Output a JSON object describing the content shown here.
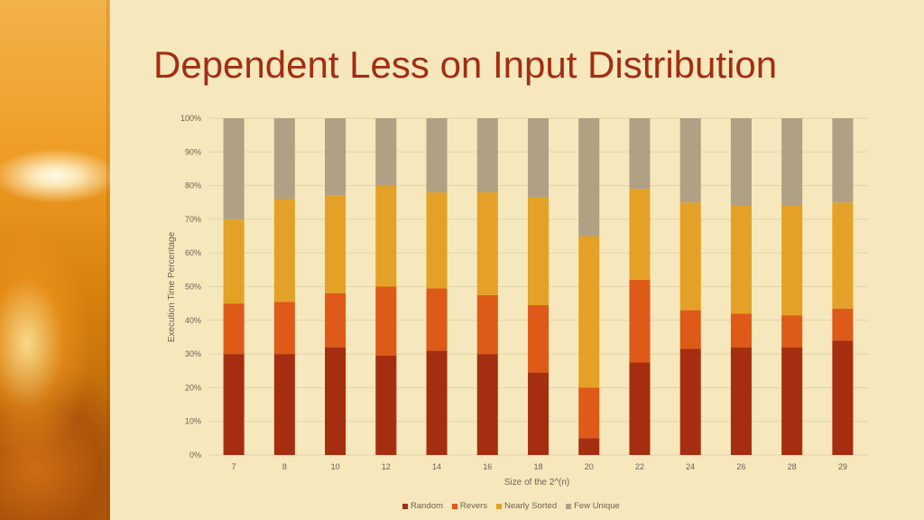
{
  "slide": {
    "title": "Dependent Less on Input Distribution"
  },
  "chart_data": {
    "type": "bar",
    "stacked": "percent",
    "categories": [
      "7",
      "8",
      "10",
      "12",
      "14",
      "16",
      "18",
      "20",
      "22",
      "24",
      "26",
      "28",
      "29"
    ],
    "xlabel": "Size of the 2^(n)",
    "ylabel": "Execution Time Percentage",
    "ylim": [
      0,
      100
    ],
    "yticks": [
      "0%",
      "10%",
      "20%",
      "30%",
      "40%",
      "50%",
      "60%",
      "70%",
      "80%",
      "90%",
      "100%"
    ],
    "grid": true,
    "legend_position": "bottom",
    "series": [
      {
        "name": "Random",
        "color": "#a62e10",
        "values": [
          30,
          30,
          32,
          29.5,
          31,
          30,
          24.5,
          5,
          27.5,
          31.5,
          32,
          32,
          34
        ]
      },
      {
        "name": "Revers",
        "color": "#dd5a19",
        "values": [
          15,
          15.5,
          16,
          20.5,
          18.5,
          17.5,
          20,
          15,
          24.5,
          11.5,
          10,
          9.5,
          9.5
        ]
      },
      {
        "name": "Nearly Sorted",
        "color": "#e4a127",
        "values": [
          25,
          30.5,
          29,
          30,
          28.5,
          30.5,
          32,
          45,
          27,
          32,
          32,
          32.5,
          31.5
        ]
      },
      {
        "name": "Few Unique",
        "color": "#b0a184",
        "values": [
          30,
          24,
          23,
          20,
          22,
          22,
          23.5,
          35,
          21,
          25,
          26,
          26,
          25
        ]
      }
    ]
  }
}
